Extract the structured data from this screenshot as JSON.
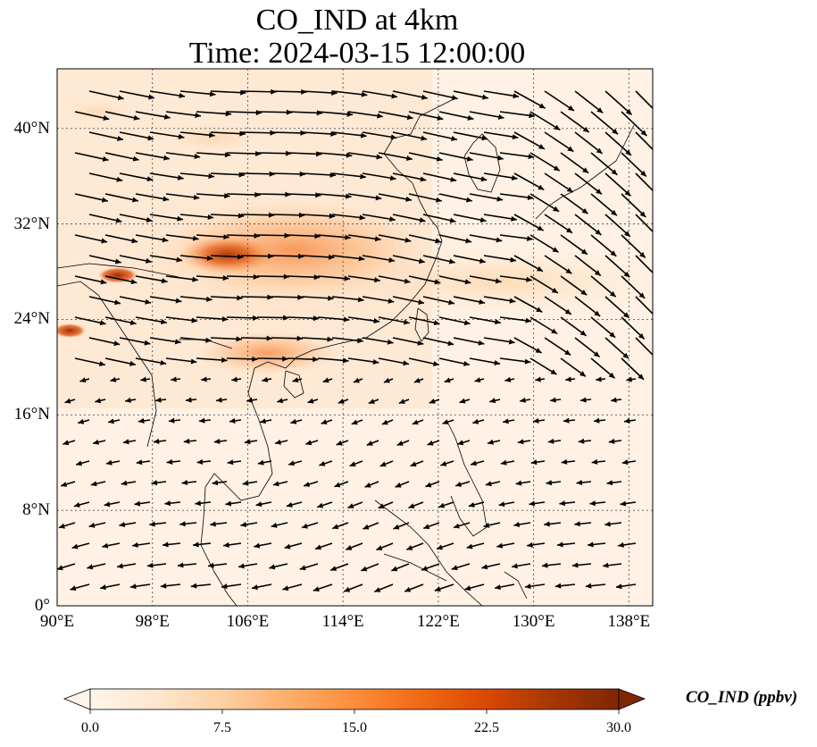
{
  "title_line1": "CO_IND at 4km",
  "title_line2": "Time: 2024-03-15 12:00:00",
  "map": {
    "lon_range": [
      90,
      140
    ],
    "lat_range": [
      0,
      45
    ],
    "lat_ticks": [
      {
        "value": 0,
        "label": "0°"
      },
      {
        "value": 8,
        "label": "8°N"
      },
      {
        "value": 16,
        "label": "16°N"
      },
      {
        "value": 24,
        "label": "24°N"
      },
      {
        "value": 32,
        "label": "32°N"
      },
      {
        "value": 40,
        "label": "40°N"
      }
    ],
    "lon_ticks": [
      {
        "value": 90,
        "label": "90°E"
      },
      {
        "value": 98,
        "label": "98°E"
      },
      {
        "value": 106,
        "label": "106°E"
      },
      {
        "value": 114,
        "label": "114°E"
      },
      {
        "value": 122,
        "label": "122°E"
      },
      {
        "value": 130,
        "label": "130°E"
      },
      {
        "value": 138,
        "label": "138°E"
      }
    ],
    "gridlines": "dotted"
  },
  "colorbar": {
    "label": "CO_IND (ppbv)",
    "min": 0.0,
    "max": 30.0,
    "ticks": [
      "0.0",
      "7.5",
      "15.0",
      "22.5",
      "30.0"
    ],
    "colors": [
      "#fff5eb",
      "#fee6ce",
      "#fdd0a2",
      "#fdae6b",
      "#fd8d3c",
      "#f16913",
      "#d94801",
      "#a63603",
      "#7f2704"
    ],
    "extend": "both"
  }
}
